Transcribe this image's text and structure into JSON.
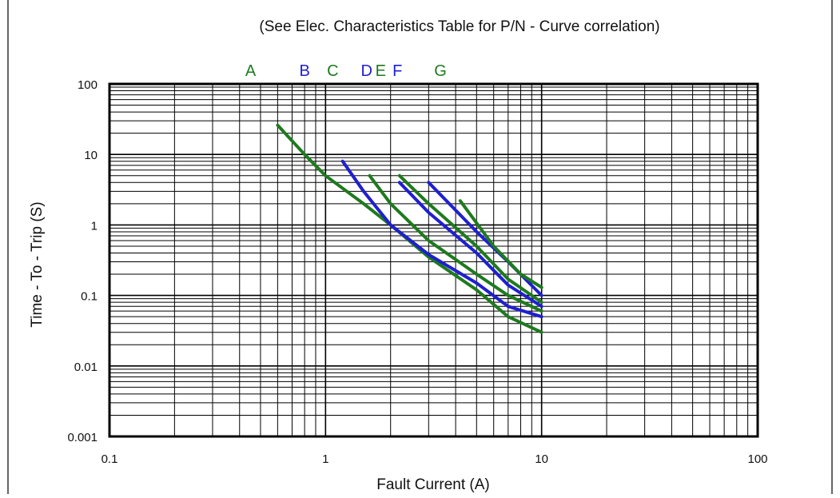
{
  "chart_data": {
    "type": "line",
    "title": "(See Elec. Characteristics Table for P/N - Curve correlation)",
    "xlabel": "Fault Current (A)",
    "ylabel": "Time - To - Trip (S)",
    "x_scale": "log",
    "y_scale": "log",
    "xlim": [
      0.1,
      100
    ],
    "ylim": [
      0.001,
      100
    ],
    "x_ticks": [
      0.1,
      1,
      10,
      100
    ],
    "x_tick_labels": [
      "0.1",
      "1",
      "10",
      "100"
    ],
    "y_ticks": [
      100,
      10,
      1,
      0.1,
      0.01,
      0.001
    ],
    "y_tick_labels": [
      "100",
      "10",
      "1",
      "0.1",
      "0.01",
      "0.001"
    ],
    "grid": true,
    "colors": {
      "green": "#1e7a1e",
      "blue": "#1f1fd0"
    },
    "curve_labels": [
      {
        "text": "A",
        "color": "green",
        "x": 0.45
      },
      {
        "text": "B",
        "color": "blue",
        "x": 0.8
      },
      {
        "text": "C",
        "color": "green",
        "x": 1.08
      },
      {
        "text": "D",
        "color": "blue",
        "x": 1.55
      },
      {
        "text": "E",
        "color": "green",
        "x": 1.8
      },
      {
        "text": "F",
        "color": "blue",
        "x": 2.15
      },
      {
        "text": "G",
        "color": "green",
        "x": 3.4
      }
    ],
    "series": [
      {
        "name": "A",
        "color": "green",
        "x": [
          0.6,
          0.8,
          1,
          1.5,
          2,
          3,
          5,
          7,
          10
        ],
        "y": [
          26,
          10,
          5,
          2,
          1,
          0.35,
          0.12,
          0.05,
          0.03
        ]
      },
      {
        "name": "B",
        "color": "blue",
        "x": [
          1.2,
          1.5,
          2,
          3,
          5,
          7,
          10
        ],
        "y": [
          8,
          3,
          1,
          0.38,
          0.15,
          0.07,
          0.05
        ]
      },
      {
        "name": "C",
        "color": "green",
        "x": [
          1.6,
          2,
          3,
          5,
          7,
          10
        ],
        "y": [
          5,
          2,
          0.6,
          0.2,
          0.1,
          0.06
        ]
      },
      {
        "name": "D",
        "color": "blue",
        "x": [
          2.2,
          3,
          5,
          7,
          10
        ],
        "y": [
          4,
          1.5,
          0.4,
          0.14,
          0.07
        ]
      },
      {
        "name": "E",
        "color": "green",
        "x": [
          2.2,
          3,
          5,
          7,
          10
        ],
        "y": [
          5,
          2,
          0.5,
          0.17,
          0.08
        ]
      },
      {
        "name": "F",
        "color": "blue",
        "x": [
          3,
          5,
          7,
          10
        ],
        "y": [
          4,
          0.8,
          0.3,
          0.1
        ]
      },
      {
        "name": "G",
        "color": "green",
        "x": [
          4.2,
          6,
          8,
          10
        ],
        "y": [
          2.2,
          0.5,
          0.2,
          0.13
        ]
      }
    ]
  }
}
